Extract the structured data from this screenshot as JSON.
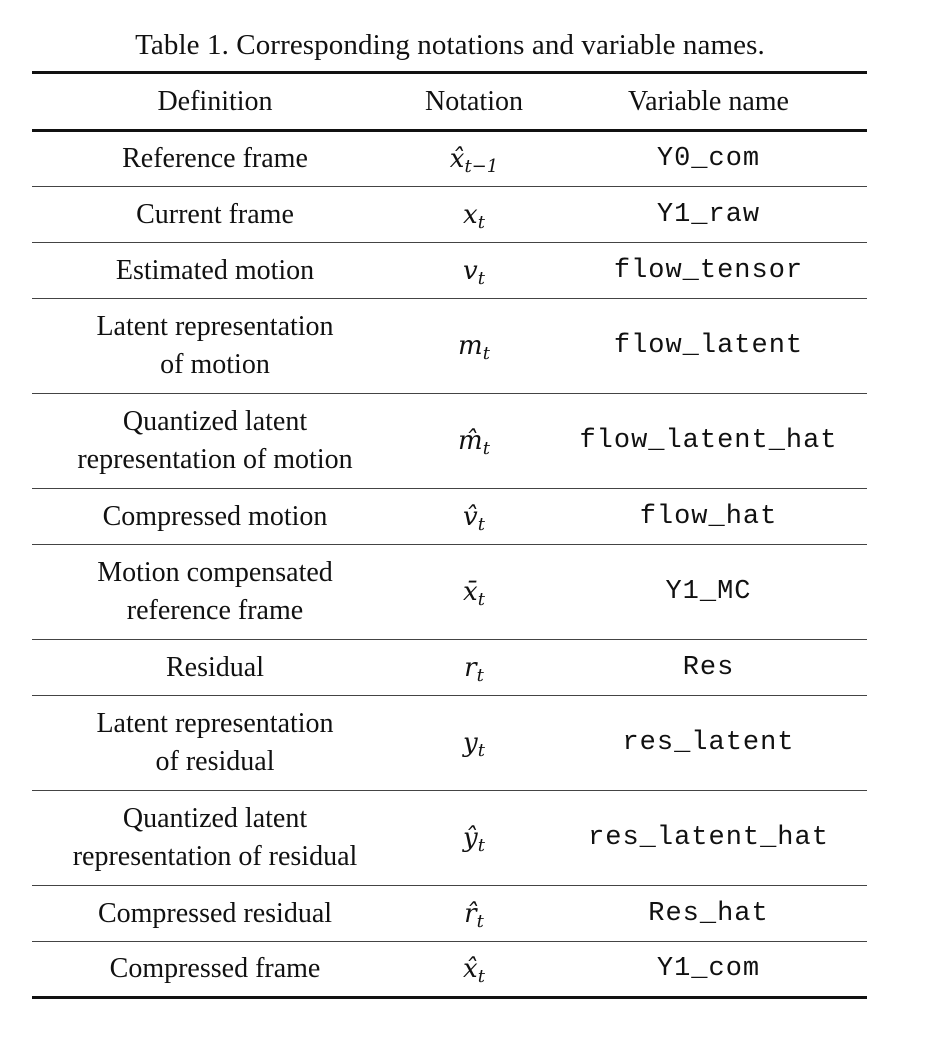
{
  "caption": "Table 1. Corresponding notations and variable names.",
  "table": {
    "headers": [
      "Definition",
      "Notation",
      "Variable name"
    ],
    "rows": [
      {
        "definition": "Reference frame",
        "symbol": "x̂",
        "subscript": "t−1",
        "variable": "Y0_com"
      },
      {
        "definition": "Current frame",
        "symbol": "x",
        "subscript": "t",
        "variable": "Y1_raw"
      },
      {
        "definition": "Estimated motion",
        "symbol": "v",
        "subscript": "t",
        "variable": "flow_tensor"
      },
      {
        "definition": "Latent representation\nof motion",
        "symbol": "m",
        "subscript": "t",
        "variable": "flow_latent"
      },
      {
        "definition": "Quantized latent\nrepresentation of motion",
        "symbol": "m̂",
        "subscript": "t",
        "variable": "flow_latent_hat"
      },
      {
        "definition": "Compressed motion",
        "symbol": "v̂",
        "subscript": "t",
        "variable": "flow_hat"
      },
      {
        "definition": "Motion compensated\nreference frame",
        "symbol": "x̄",
        "subscript": "t",
        "variable": "Y1_MC"
      },
      {
        "definition": "Residual",
        "symbol": "r",
        "subscript": "t",
        "variable": "Res"
      },
      {
        "definition": "Latent representation\nof residual",
        "symbol": "y",
        "subscript": "t",
        "variable": "res_latent"
      },
      {
        "definition": "Quantized latent\nrepresentation of residual",
        "symbol": "ŷ",
        "subscript": "t",
        "variable": "res_latent_hat"
      },
      {
        "definition": "Compressed residual",
        "symbol": "r̂",
        "subscript": "t",
        "variable": "Res_hat"
      },
      {
        "definition": "Compressed frame",
        "symbol": "x̂",
        "subscript": "t",
        "variable": "Y1_com"
      }
    ]
  }
}
